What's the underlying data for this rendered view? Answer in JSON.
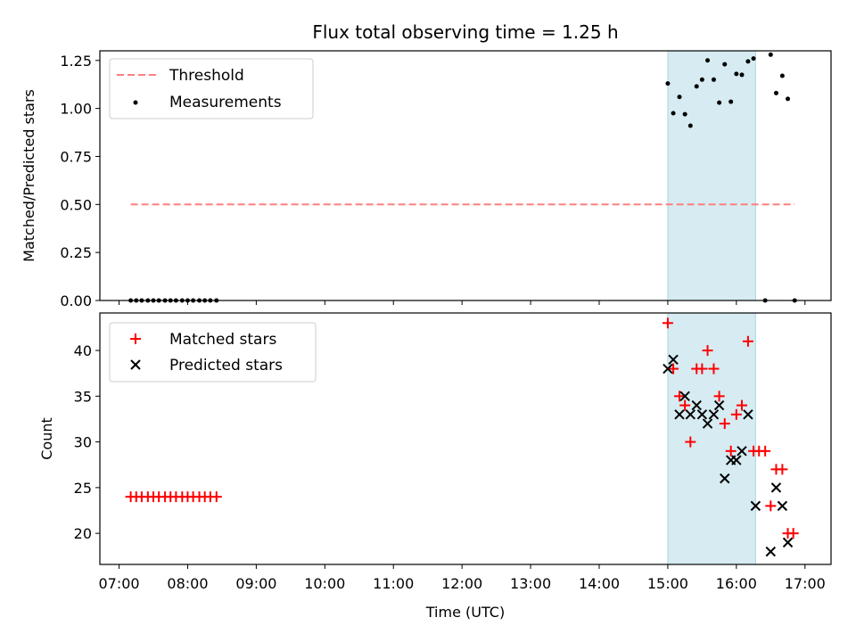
{
  "chart_data": [
    {
      "type": "scatter",
      "title": "Flux total observing time = 1.25 h",
      "xlabel": "",
      "ylabel": "Matched/Predicted stars",
      "xlim": [
        6.72,
        17.38
      ],
      "ylim": [
        0.0,
        1.3
      ],
      "yticks": [
        0.0,
        0.25,
        0.5,
        0.75,
        1.0,
        1.25
      ],
      "ytick_labels": [
        "0.00",
        "0.25",
        "0.50",
        "0.75",
        "1.00",
        "1.25"
      ],
      "shaded_span": [
        15.0,
        16.28
      ],
      "legend_position": "top-left",
      "series": [
        {
          "name": "Threshold",
          "kind": "dashed-line",
          "color": "#ff7f7f",
          "x": [
            7.17,
            16.85
          ],
          "y": [
            0.5,
            0.5
          ]
        },
        {
          "name": "Measurements",
          "kind": "dot",
          "color": "#000000",
          "x": [
            7.17,
            7.25,
            7.33,
            7.42,
            7.5,
            7.58,
            7.67,
            7.75,
            7.83,
            7.92,
            8.0,
            8.08,
            8.17,
            8.25,
            8.33,
            8.42,
            15.0,
            15.08,
            15.17,
            15.25,
            15.33,
            15.42,
            15.5,
            15.58,
            15.67,
            15.75,
            15.83,
            15.92,
            16.0,
            16.08,
            16.17,
            16.25,
            16.42,
            16.5,
            16.58,
            16.67,
            16.75,
            16.85
          ],
          "y": [
            0,
            0,
            0,
            0,
            0,
            0,
            0,
            0,
            0,
            0,
            0,
            0,
            0,
            0,
            0,
            0,
            1.13,
            0.975,
            1.06,
            0.97,
            0.91,
            1.115,
            1.15,
            1.25,
            1.15,
            1.03,
            1.23,
            1.035,
            1.18,
            1.175,
            1.245,
            1.26,
            0,
            1.28,
            1.08,
            1.17,
            1.05,
            0
          ]
        }
      ]
    },
    {
      "type": "scatter",
      "title": "",
      "xlabel": "Time (UTC)",
      "ylabel": "Count",
      "xlim": [
        6.72,
        17.38
      ],
      "ylim": [
        16.6,
        44.1
      ],
      "xticks": [
        7,
        8,
        9,
        10,
        11,
        12,
        13,
        14,
        15,
        16,
        17
      ],
      "xtick_labels": [
        "07:00",
        "08:00",
        "09:00",
        "10:00",
        "11:00",
        "12:00",
        "13:00",
        "14:00",
        "15:00",
        "16:00",
        "17:00"
      ],
      "yticks": [
        20,
        25,
        30,
        35,
        40
      ],
      "ytick_labels": [
        "20",
        "25",
        "30",
        "35",
        "40"
      ],
      "shaded_span": [
        15.0,
        16.28
      ],
      "legend_position": "top-left",
      "series": [
        {
          "name": "Matched stars",
          "kind": "plus",
          "color": "#ff0000",
          "x": [
            7.17,
            7.25,
            7.33,
            7.42,
            7.5,
            7.58,
            7.67,
            7.75,
            7.83,
            7.92,
            8.0,
            8.08,
            8.17,
            8.25,
            8.33,
            8.42,
            15.0,
            15.08,
            15.17,
            15.25,
            15.33,
            15.42,
            15.5,
            15.58,
            15.67,
            15.75,
            15.83,
            15.92,
            16.0,
            16.08,
            16.17,
            16.25,
            16.33,
            16.42,
            16.5,
            16.58,
            16.67,
            16.75,
            16.83
          ],
          "y": [
            24,
            24,
            24,
            24,
            24,
            24,
            24,
            24,
            24,
            24,
            24,
            24,
            24,
            24,
            24,
            24,
            43,
            38,
            35,
            34,
            30,
            38,
            38,
            40,
            38,
            35,
            32,
            29,
            33,
            34,
            41,
            29,
            29,
            29,
            23,
            27,
            27,
            20,
            20
          ]
        },
        {
          "name": "Predicted stars",
          "kind": "x",
          "color": "#000000",
          "x": [
            15.0,
            15.08,
            15.17,
            15.25,
            15.33,
            15.42,
            15.5,
            15.58,
            15.67,
            15.75,
            15.83,
            15.92,
            16.0,
            16.08,
            16.17,
            16.28,
            16.5,
            16.58,
            16.67,
            16.75
          ],
          "y": [
            38,
            39,
            33,
            35,
            33,
            34,
            33,
            32,
            33,
            34,
            26,
            28,
            28,
            29,
            33,
            23,
            18,
            25,
            23,
            19
          ]
        }
      ]
    }
  ]
}
